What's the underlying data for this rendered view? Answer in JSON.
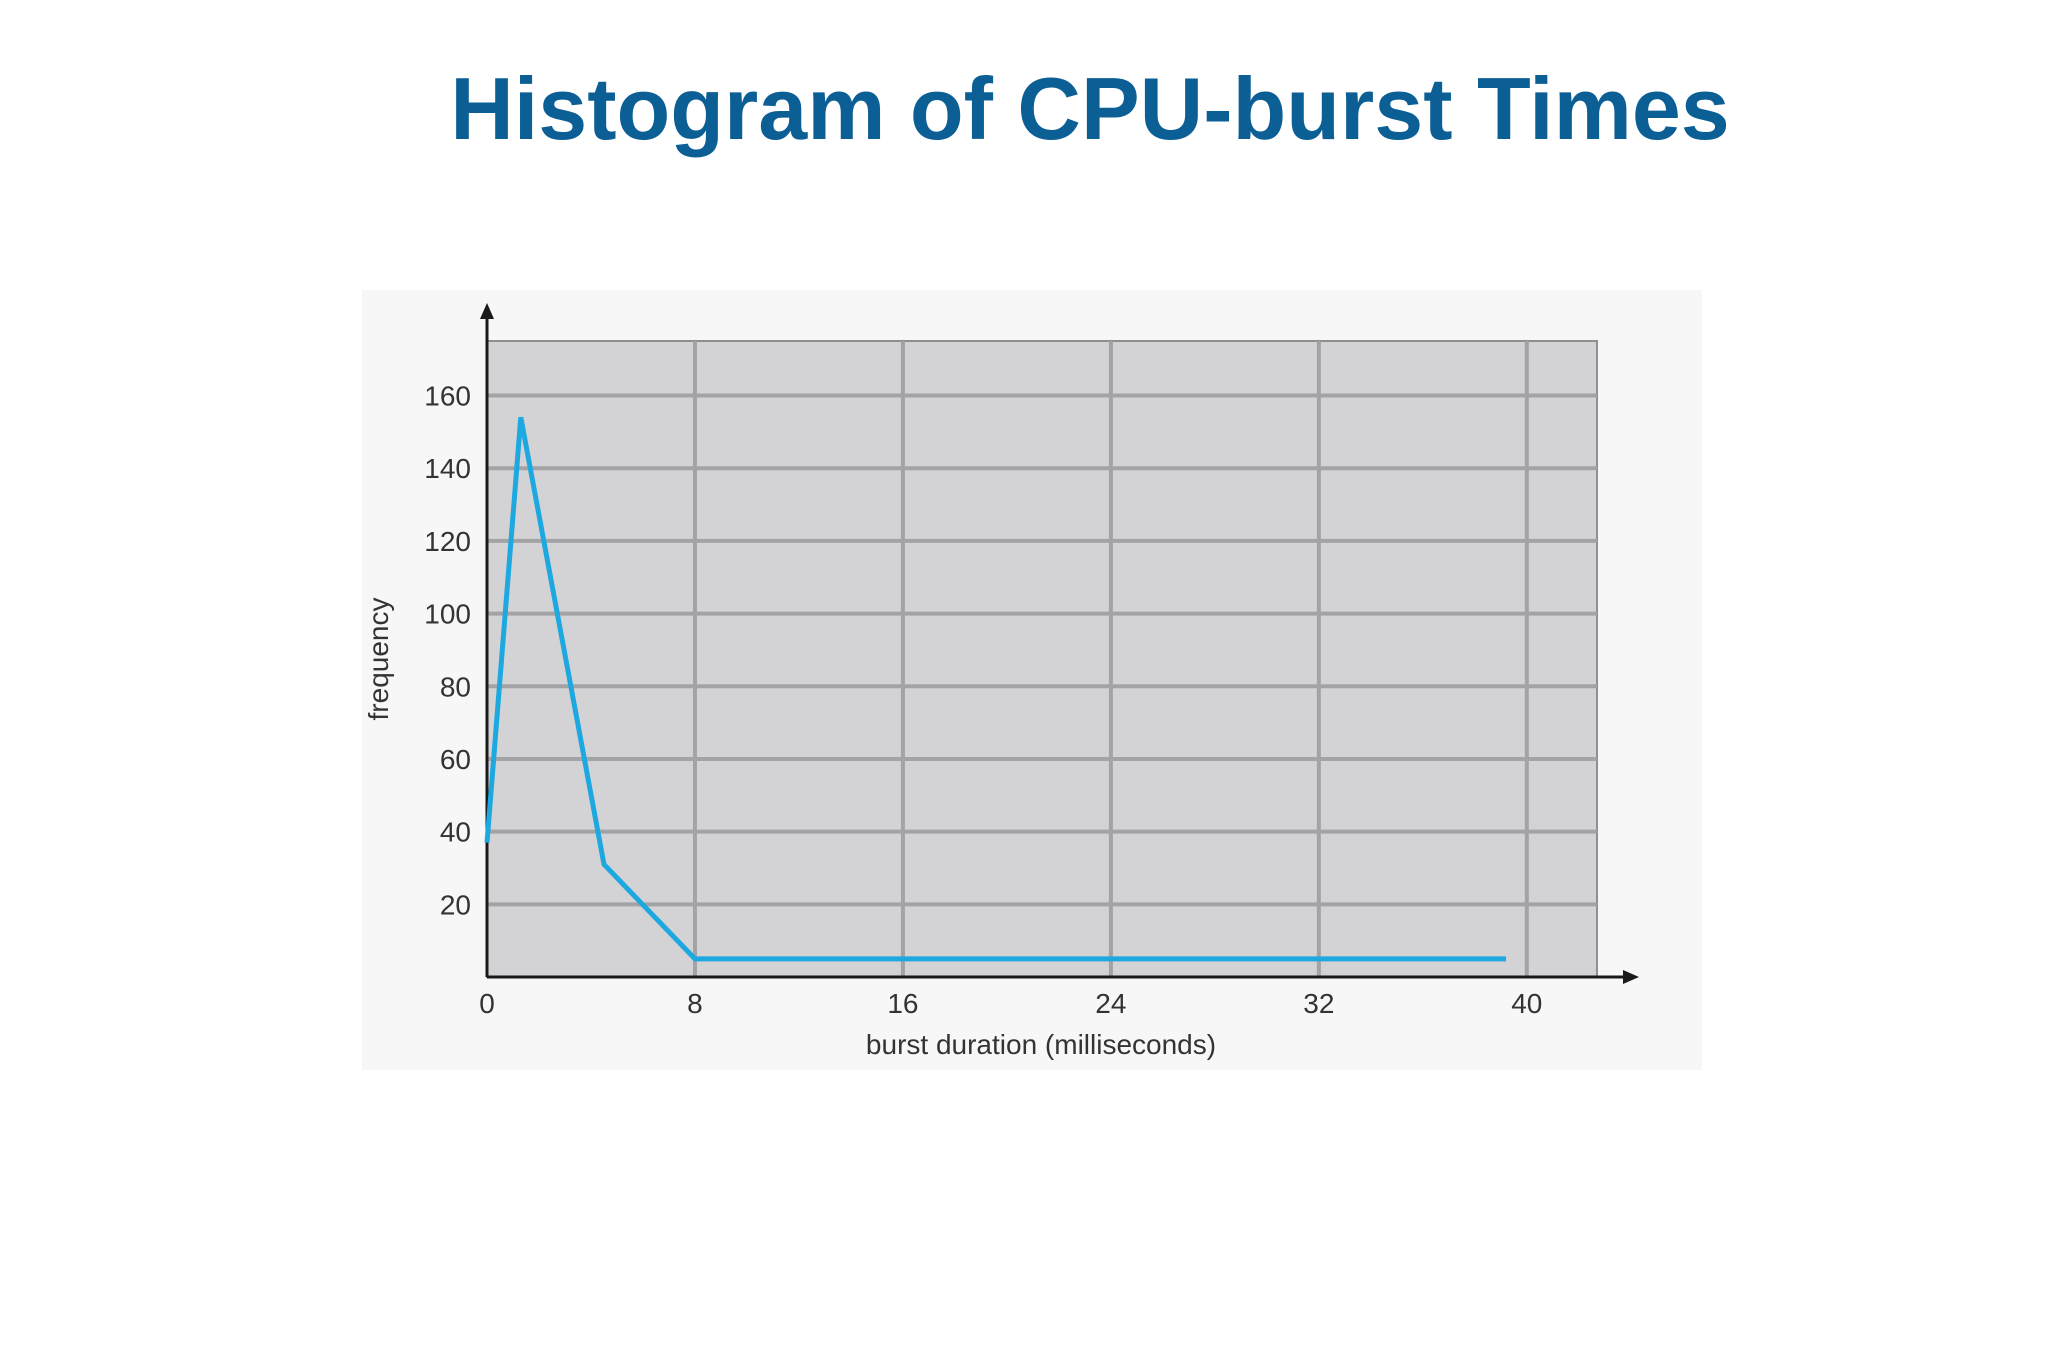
{
  "slide": {
    "title": "Histogram of CPU-burst Times"
  },
  "chart_data": {
    "type": "line",
    "title": "",
    "xlabel": "burst duration (milliseconds)",
    "ylabel": "frequency",
    "x_ticks": [
      0,
      8,
      16,
      24,
      32,
      40
    ],
    "y_ticks": [
      20,
      40,
      60,
      80,
      100,
      120,
      140,
      160
    ],
    "xlim": [
      0,
      42.7
    ],
    "ylim": [
      0,
      175
    ],
    "grid": true,
    "legend": "none",
    "series": [
      {
        "color": "#1da8e0",
        "x": [
          0,
          1.3,
          4.5,
          8,
          39.2
        ],
        "y": [
          37,
          154,
          31,
          5,
          5
        ]
      }
    ],
    "colors": {
      "plot_background": "#d3d3d5",
      "grid": "#a3a3a6",
      "axis": "#1a1a1a",
      "title": "#0b5f95"
    }
  }
}
